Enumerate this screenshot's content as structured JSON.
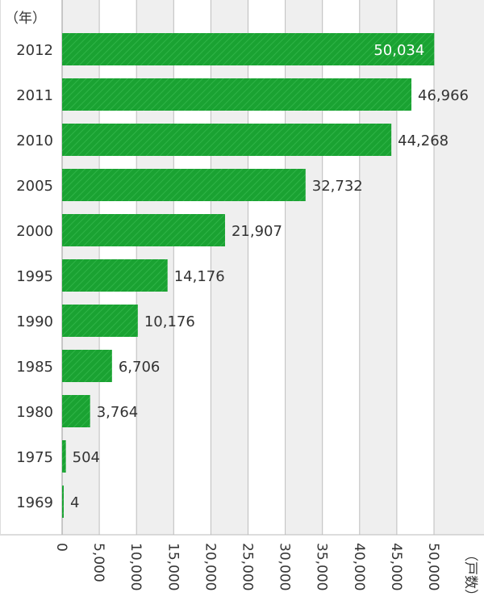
{
  "chart_data": {
    "type": "bar",
    "orientation": "horizontal",
    "year_unit_label": "（年）",
    "value_unit_label": "（戸数）",
    "categories": [
      "2012",
      "2011",
      "2010",
      "2005",
      "2000",
      "1995",
      "1990",
      "1985",
      "1980",
      "1975",
      "1969"
    ],
    "values": [
      50034,
      46966,
      44268,
      32732,
      21907,
      14176,
      10176,
      6706,
      3764,
      504,
      4
    ],
    "value_labels": [
      "50,034",
      "46,966",
      "44,268",
      "32,732",
      "21,907",
      "14,176",
      "10,176",
      "6,706",
      "3,764",
      "504",
      "4"
    ],
    "xlim": [
      0,
      55000
    ],
    "x_ticks": [
      0,
      5000,
      10000,
      15000,
      20000,
      25000,
      30000,
      35000,
      40000,
      45000,
      50000
    ],
    "x_tick_labels": [
      "0",
      "5,000",
      "10,000",
      "15,000",
      "20,000",
      "25,000",
      "30,000",
      "35,000",
      "40,000",
      "45,000",
      "50,000"
    ],
    "grid": true,
    "bar_color": "#1aa232",
    "band_color": "#efefef",
    "grid_color": "#bdbdbd"
  }
}
